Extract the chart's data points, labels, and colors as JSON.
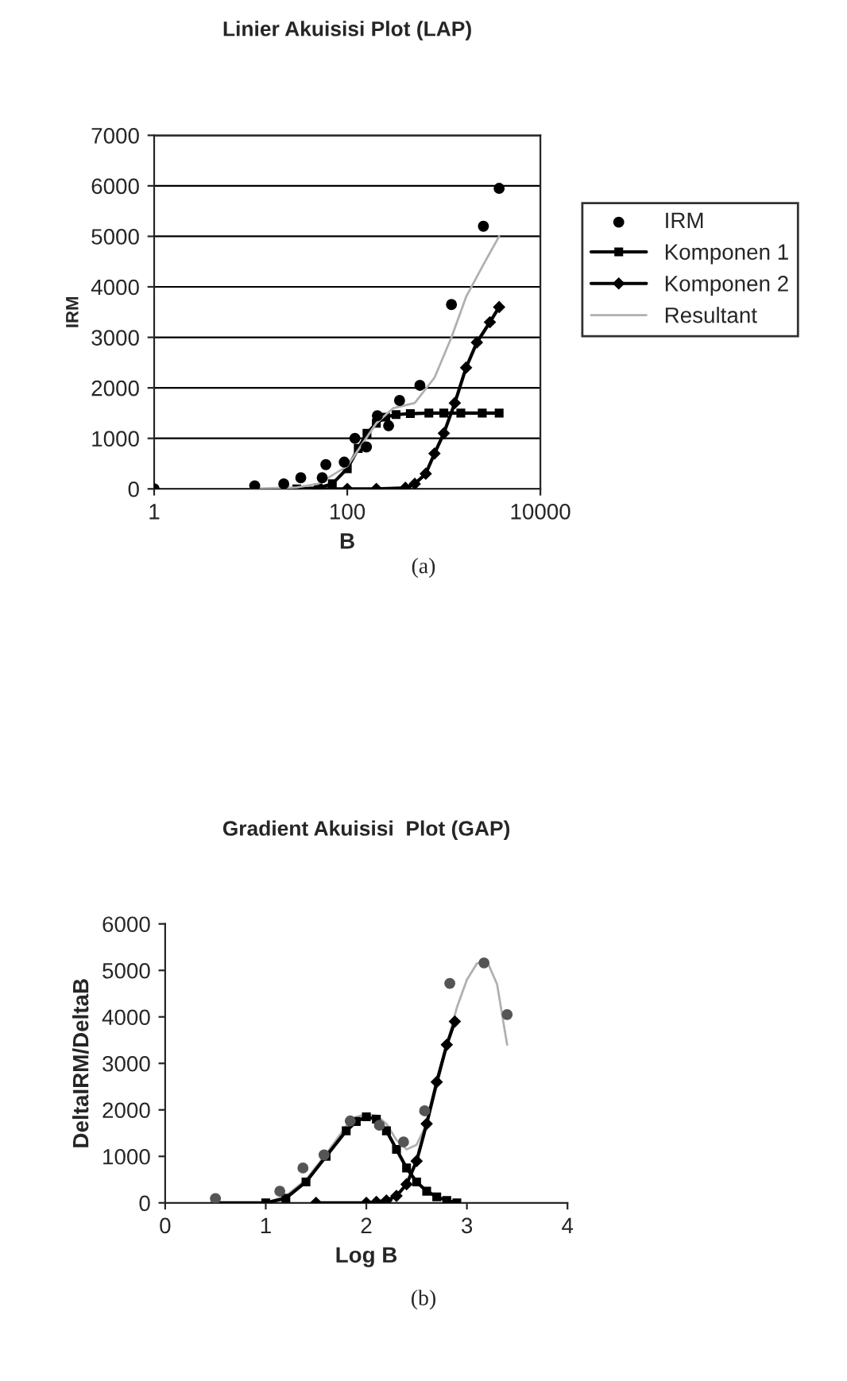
{
  "chart_data": [
    {
      "type": "line",
      "title": "Linier Akuisisi Plot (LAP)",
      "xlabel": "B",
      "ylabel": "IRM",
      "log": "x",
      "xlim": [
        1,
        10000
      ],
      "xticks": [
        1,
        100,
        10000
      ],
      "ylim": [
        0,
        7000
      ],
      "yticks": [
        0,
        1000,
        2000,
        3000,
        4000,
        5000,
        6000,
        7000
      ],
      "grid": "y",
      "legend": "right",
      "annotations": [
        "(a)"
      ],
      "series": [
        {
          "name": "IRM",
          "type": "scatter",
          "marker": "circle",
          "color": "#000000",
          "x": [
            1,
            11,
            22,
            33,
            55,
            60,
            93,
            120,
            158,
            205,
            268,
            348,
            565,
            1200,
            2570,
            3740
          ],
          "values": [
            0,
            60,
            100,
            220,
            220,
            480,
            530,
            1000,
            830,
            1450,
            1250,
            1750,
            2050,
            3650,
            5200,
            5950
          ]
        },
        {
          "name": "Komponen 1",
          "marker": "square",
          "color": "#000000",
          "x": [
            30,
            50,
            70,
            100,
            130,
            160,
            200,
            250,
            320,
            450,
            700,
            1000,
            1500,
            2500,
            3740
          ],
          "values": [
            0,
            20,
            100,
            400,
            800,
            1100,
            1300,
            1420,
            1470,
            1490,
            1500,
            1500,
            1500,
            1500,
            1500
          ]
        },
        {
          "name": "Komponen 2",
          "marker": "diamond",
          "color": "#000000",
          "x": [
            50,
            100,
            200,
            400,
            500,
            650,
            800,
            1000,
            1300,
            1700,
            2200,
            3000,
            3740
          ],
          "values": [
            0,
            0,
            0,
            20,
            100,
            300,
            700,
            1100,
            1700,
            2400,
            2900,
            3300,
            3600
          ]
        },
        {
          "name": "Resultant",
          "marker": "none",
          "color": "#b0b0b0",
          "x": [
            10,
            30,
            50,
            100,
            200,
            300,
            500,
            800,
            1200,
            1700,
            2500,
            3740
          ],
          "values": [
            0,
            30,
            100,
            450,
            1300,
            1600,
            1700,
            2200,
            3000,
            3800,
            4400,
            5000
          ]
        }
      ]
    },
    {
      "type": "line",
      "title": "Gradient Akuisisi  Plot (GAP)",
      "xlabel": "Log B",
      "ylabel": "DeltaIRM/DeltaB",
      "xlim": [
        0,
        4
      ],
      "xticks": [
        0,
        1,
        2,
        3,
        4
      ],
      "ylim": [
        0,
        6000
      ],
      "yticks": [
        0,
        1000,
        2000,
        3000,
        4000,
        5000,
        6000
      ],
      "grid": false,
      "legend": false,
      "annotations": [
        "(b)"
      ],
      "series": [
        {
          "type": "scatter",
          "marker": "circle",
          "color": "#555555",
          "x": [
            0.5,
            1.14,
            1.37,
            1.58,
            1.84,
            2.13,
            2.37,
            2.58,
            2.83,
            3.17,
            3.4
          ],
          "values": [
            90,
            250,
            750,
            1030,
            1760,
            1670,
            1310,
            1980,
            4720,
            5160,
            4050
          ]
        },
        {
          "marker": "none",
          "color": "#b0b0b0",
          "x": [
            1.0,
            1.2,
            1.4,
            1.6,
            1.8,
            1.9,
            2.0,
            2.1,
            2.2,
            2.3,
            2.4,
            2.5,
            2.6,
            2.7,
            2.8,
            2.9,
            3.0,
            3.1,
            3.2,
            3.3,
            3.4
          ],
          "values": [
            0,
            150,
            500,
            1050,
            1650,
            1850,
            1900,
            1880,
            1700,
            1350,
            1150,
            1250,
            1700,
            2500,
            3400,
            4200,
            4800,
            5150,
            5200,
            4700,
            3400
          ]
        },
        {
          "marker": "square",
          "color": "#000000",
          "x": [
            0.5,
            1.0,
            1.2,
            1.4,
            1.6,
            1.8,
            1.9,
            2.0,
            2.1,
            2.2,
            2.3,
            2.4,
            2.5,
            2.6,
            2.7,
            2.8,
            2.9
          ],
          "values": [
            0,
            0,
            100,
            450,
            1000,
            1550,
            1750,
            1850,
            1800,
            1550,
            1150,
            750,
            450,
            250,
            130,
            50,
            0
          ]
        },
        {
          "marker": "diamond",
          "color": "#000000",
          "x": [
            1.5,
            2.0,
            2.1,
            2.2,
            2.3,
            2.4,
            2.5,
            2.6,
            2.7,
            2.8,
            2.88
          ],
          "values": [
            0,
            0,
            20,
            50,
            150,
            400,
            900,
            1700,
            2600,
            3400,
            3900
          ]
        }
      ]
    }
  ]
}
